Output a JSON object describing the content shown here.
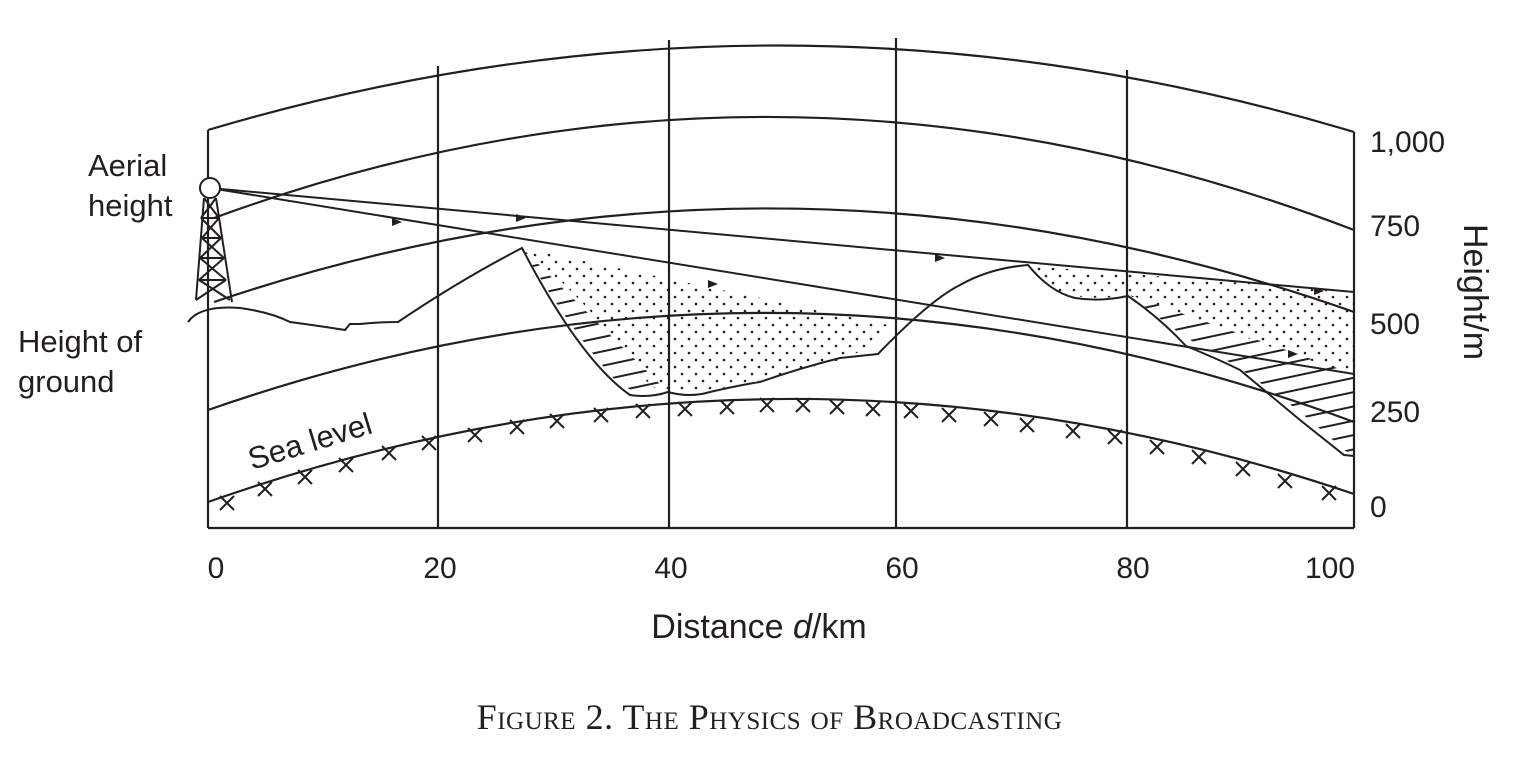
{
  "figure": {
    "caption": "Figure 2. The Physics of Broadcasting",
    "x_axis": {
      "label_prefix": "Distance ",
      "label_var": "d",
      "label_suffix": "/km",
      "ticks": [
        "0",
        "20",
        "40",
        "60",
        "80",
        "100"
      ]
    },
    "y_axis": {
      "label": "Height/m",
      "ticks": [
        "1,000",
        "750",
        "500",
        "250",
        "0"
      ]
    },
    "labels": {
      "aerial_line1": "Aerial",
      "aerial_line2": "height",
      "ground_line1": "Height of",
      "ground_line2": "ground",
      "sea_level": "Sea level"
    },
    "colors": {
      "ink": "#231f20",
      "background": "#ffffff"
    }
  }
}
